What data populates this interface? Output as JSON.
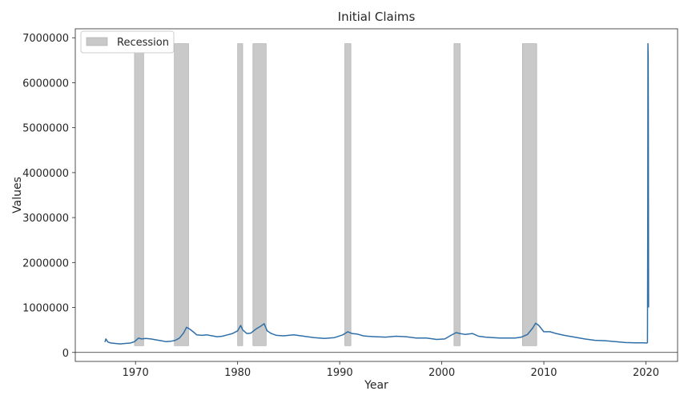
{
  "chart_data": {
    "type": "line",
    "title": "Initial Claims",
    "xlabel": "Year",
    "ylabel": "Values",
    "xlim": [
      1964.1,
      2023.1
    ],
    "ylim": [
      -200000,
      7200000
    ],
    "x_ticks": [
      1970,
      1980,
      1990,
      2000,
      2010,
      2020
    ],
    "y_ticks": [
      0,
      1000000,
      2000000,
      3000000,
      4000000,
      5000000,
      6000000,
      7000000
    ],
    "y_tick_labels": [
      "0",
      "1000000",
      "2000000",
      "3000000",
      "4000000",
      "5000000",
      "6000000",
      "7000000"
    ],
    "grid": false,
    "legend": {
      "placement": "top-left",
      "entries": [
        {
          "label": "Recession",
          "color": "#c9c9c9"
        }
      ]
    },
    "recessions": {
      "color": "#c9c9c9",
      "edge_color": "#a8a8a8",
      "y_range": [
        150000,
        6870000
      ],
      "periods": [
        {
          "start": 1969.9,
          "end": 1970.8
        },
        {
          "start": 1973.8,
          "end": 1975.2
        },
        {
          "start": 1980.0,
          "end": 1980.5
        },
        {
          "start": 1981.5,
          "end": 1982.8
        },
        {
          "start": 1990.5,
          "end": 1991.1
        },
        {
          "start": 2001.2,
          "end": 2001.8
        },
        {
          "start": 2007.9,
          "end": 2009.3
        }
      ]
    },
    "series": [
      {
        "color": "#2f6fa8",
        "x": [
          1967.0,
          1967.1,
          1967.3,
          1967.6,
          1968.0,
          1968.5,
          1969.0,
          1969.5,
          1969.9,
          1970.3,
          1970.6,
          1971.0,
          1971.5,
          1972.0,
          1972.5,
          1973.0,
          1973.5,
          1973.9,
          1974.3,
          1974.7,
          1975.0,
          1975.3,
          1975.7,
          1976.0,
          1976.5,
          1977.0,
          1977.5,
          1978.0,
          1978.5,
          1979.0,
          1979.5,
          1980.0,
          1980.3,
          1980.5,
          1980.9,
          1981.3,
          1981.8,
          1982.3,
          1982.6,
          1982.9,
          1983.3,
          1983.8,
          1984.5,
          1985.5,
          1986.5,
          1987.5,
          1988.5,
          1989.5,
          1990.3,
          1990.8,
          1991.2,
          1991.7,
          1992.3,
          1992.7,
          1993.5,
          1994.5,
          1995.5,
          1996.5,
          1997.5,
          1998.5,
          1999.5,
          2000.3,
          2000.9,
          2001.4,
          2001.8,
          2002.3,
          2003.0,
          2003.6,
          2004.3,
          2005.0,
          2005.7,
          2006.5,
          2007.2,
          2007.8,
          2008.4,
          2008.9,
          2009.2,
          2009.5,
          2010.0,
          2010.6,
          2011.2,
          2012.0,
          2013.0,
          2014.0,
          2015.0,
          2016.0,
          2017.0,
          2018.0,
          2019.0,
          2019.8,
          2020.1,
          2020.15,
          2020.18,
          2020.2,
          2020.22,
          2020.24,
          2020.26
        ],
        "y": [
          230000,
          300000,
          230000,
          210000,
          200000,
          190000,
          200000,
          210000,
          240000,
          320000,
          300000,
          310000,
          300000,
          280000,
          260000,
          240000,
          250000,
          270000,
          320000,
          430000,
          560000,
          520000,
          450000,
          390000,
          380000,
          390000,
          370000,
          350000,
          360000,
          390000,
          420000,
          480000,
          600000,
          500000,
          420000,
          430000,
          520000,
          590000,
          640000,
          480000,
          420000,
          380000,
          370000,
          390000,
          360000,
          330000,
          310000,
          330000,
          390000,
          460000,
          420000,
          410000,
          370000,
          360000,
          350000,
          340000,
          360000,
          350000,
          320000,
          320000,
          290000,
          300000,
          380000,
          440000,
          420000,
          400000,
          420000,
          360000,
          340000,
          330000,
          320000,
          320000,
          320000,
          340000,
          400000,
          540000,
          650000,
          600000,
          460000,
          460000,
          420000,
          380000,
          340000,
          300000,
          270000,
          260000,
          240000,
          220000,
          215000,
          215000,
          210000,
          220000,
          3300000,
          6870000,
          6600000,
          5200000,
          1000000
        ]
      }
    ]
  }
}
